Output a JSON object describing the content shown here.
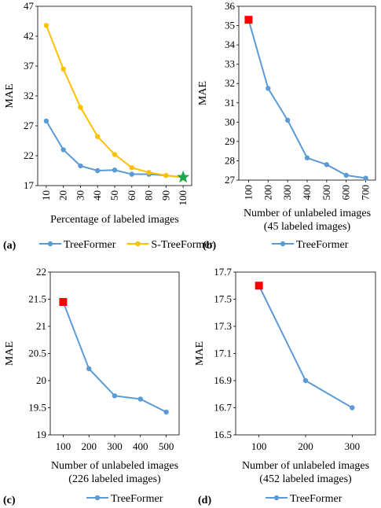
{
  "chart_data": [
    {
      "panel": "(a)",
      "type": "line",
      "xlabel": "Percentage of labeled images",
      "ylabel": "MAE",
      "categories": [
        "10",
        "20",
        "30",
        "40",
        "50",
        "60",
        "80",
        "90",
        "100"
      ],
      "ylim": [
        17,
        47
      ],
      "yticks": [
        17,
        22,
        27,
        32,
        37,
        42,
        47
      ],
      "series": [
        {
          "name": "TreeFormer",
          "color": "#5b9bd5",
          "values": [
            27.8,
            23.0,
            20.3,
            19.5,
            19.6,
            18.9,
            18.9,
            18.7,
            18.4
          ]
        },
        {
          "name": "S-TreeFormer",
          "color": "#ffc000",
          "values": [
            43.8,
            36.5,
            30.1,
            25.2,
            22.2,
            20.0,
            19.2,
            18.7,
            18.4
          ]
        }
      ],
      "marker": {
        "shape": "star",
        "color": "#1fa64a",
        "category": "100",
        "value": 18.4
      },
      "legend": [
        "TreeFormer",
        "S-TreeFormer"
      ]
    },
    {
      "panel": "(b)",
      "type": "line",
      "xlabel": "Number of unlabeled images",
      "xlabel2": "(45 labeled images)",
      "ylabel": "MAE",
      "categories": [
        "100",
        "200",
        "300",
        "400",
        "500",
        "600",
        "700"
      ],
      "ylim": [
        27,
        36
      ],
      "yticks": [
        27,
        28,
        29,
        30,
        31,
        32,
        33,
        34,
        35,
        36
      ],
      "series": [
        {
          "name": "TreeFormer",
          "color": "#5b9bd5",
          "values": [
            35.3,
            31.75,
            30.1,
            28.15,
            27.8,
            27.25,
            27.1
          ]
        }
      ],
      "marker": {
        "shape": "square",
        "color": "#ff0000",
        "category": "100",
        "value": 35.3
      },
      "legend": [
        "TreeFormer"
      ]
    },
    {
      "panel": "(c)",
      "type": "line",
      "xlabel": "Number of unlabeled images",
      "xlabel2": "(226 labeled images)",
      "ylabel": "MAE",
      "categories": [
        "100",
        "200",
        "300",
        "400",
        "500"
      ],
      "ylim": [
        19,
        22
      ],
      "yticks": [
        19,
        19.5,
        20,
        20.5,
        21,
        21.5,
        22
      ],
      "series": [
        {
          "name": "TreeFormer",
          "color": "#5b9bd5",
          "values": [
            21.45,
            20.22,
            19.72,
            19.66,
            19.42
          ]
        }
      ],
      "marker": {
        "shape": "square",
        "color": "#ff0000",
        "category": "100",
        "value": 21.45
      },
      "legend": [
        "TreeFormer"
      ]
    },
    {
      "panel": "(d)",
      "type": "line",
      "xlabel": "Number of unlabeled images",
      "xlabel2": "(452 labeled images)",
      "ylabel": "MAE",
      "categories": [
        "100",
        "200",
        "300"
      ],
      "ylim": [
        16.5,
        17.7
      ],
      "yticks": [
        16.5,
        16.7,
        16.9,
        17.1,
        17.3,
        17.5,
        17.7
      ],
      "series": [
        {
          "name": "TreeFormer",
          "color": "#5b9bd5",
          "values": [
            17.6,
            16.9,
            16.7
          ]
        }
      ],
      "marker": {
        "shape": "square",
        "color": "#ff0000",
        "category": "100",
        "value": 17.6
      },
      "legend": [
        "TreeFormer"
      ]
    }
  ]
}
